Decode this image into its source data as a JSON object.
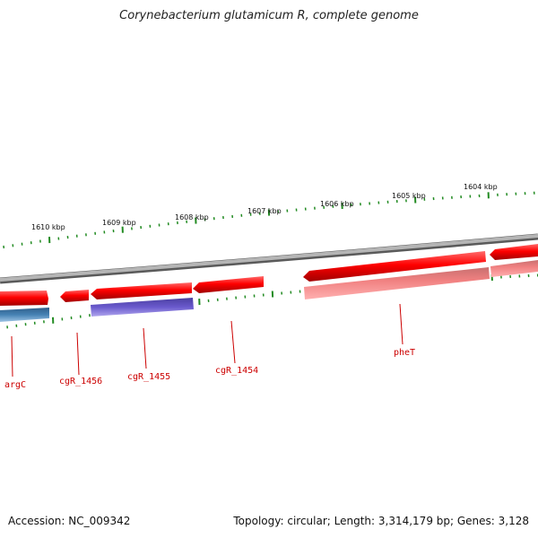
{
  "title": "Corynebacterium glutamicum R, complete genome",
  "footer": {
    "accession": "Accession: NC_009342",
    "topology": "Topology: circular; Length: 3,314,179 bp; Genes: 3,128"
  },
  "scale_labels": [
    "1610 kbp",
    "1609 kbp",
    "1608 kbp",
    "1607 kbp",
    "1606 kbp",
    "1605 kbp",
    "1604 kbp"
  ],
  "genes": [
    {
      "name": "argC",
      "strand": "forward-outer",
      "color": "#4682b4"
    },
    {
      "name": "cgR_1456",
      "strand": "reverse",
      "color": "#ff0000"
    },
    {
      "name": "cgR_1455",
      "strand": "reverse",
      "color": "#6a5acd"
    },
    {
      "name": "cgR_1454",
      "strand": "reverse",
      "color": "#ff0000"
    },
    {
      "name": "pheT",
      "strand": "reverse",
      "color": "#f08080"
    }
  ],
  "colors": {
    "backbone": "#8a8a8a",
    "gene_red": "#ff0000",
    "gene_pink": "#f08080",
    "gene_blue": "#4682b4",
    "gene_purple": "#6a5acd",
    "tick_green": "#228b22",
    "label_red": "#cc0000"
  }
}
